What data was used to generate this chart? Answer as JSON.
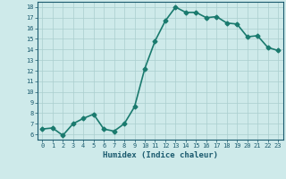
{
  "x": [
    0,
    1,
    2,
    3,
    4,
    5,
    6,
    7,
    8,
    9,
    10,
    11,
    12,
    13,
    14,
    15,
    16,
    17,
    18,
    19,
    20,
    21,
    22,
    23
  ],
  "y": [
    6.5,
    6.6,
    5.9,
    7.0,
    7.5,
    7.9,
    6.5,
    6.3,
    7.0,
    8.6,
    12.2,
    14.8,
    16.7,
    18.0,
    17.5,
    17.5,
    17.0,
    17.1,
    16.5,
    16.4,
    15.2,
    15.3,
    14.2,
    13.9
  ],
  "xlabel": "Humidex (Indice chaleur)",
  "ylim": [
    5.5,
    18.5
  ],
  "xlim": [
    -0.5,
    23.5
  ],
  "yticks": [
    6,
    7,
    8,
    9,
    10,
    11,
    12,
    13,
    14,
    15,
    16,
    17,
    18
  ],
  "xticks": [
    0,
    1,
    2,
    3,
    4,
    5,
    6,
    7,
    8,
    9,
    10,
    11,
    12,
    13,
    14,
    15,
    16,
    17,
    18,
    19,
    20,
    21,
    22,
    23
  ],
  "line_color": "#1a7a6e",
  "marker_color": "#1a7a6e",
  "bg_color": "#ceeaea",
  "grid_color": "#aacece",
  "tick_label_color": "#1a5a6e",
  "xlabel_color": "#1a5a6e",
  "line_width": 1.2,
  "marker_size": 2.5
}
